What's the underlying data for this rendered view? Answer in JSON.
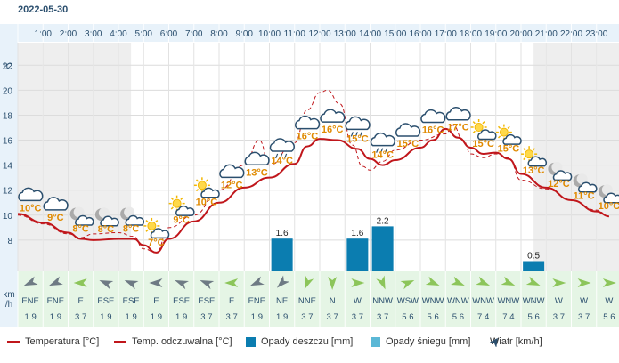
{
  "date": "2022-05-30",
  "chart_data": {
    "type": "line",
    "hours": [
      "1:00",
      "2:00",
      "3:00",
      "4:00",
      "5:00",
      "6:00",
      "7:00",
      "8:00",
      "9:00",
      "10:00",
      "11:00",
      "12:00",
      "13:00",
      "14:00",
      "15:00",
      "16:00",
      "17:00",
      "18:00",
      "19:00",
      "20:00",
      "21:00",
      "22:00",
      "23:00"
    ],
    "temp_unit_label": "°C",
    "y_ticks": [
      8,
      10,
      12,
      14,
      16,
      18,
      20,
      22
    ],
    "ylim": [
      5.5,
      23.8
    ],
    "temperature_curve": [
      [
        0.0,
        10.1
      ],
      [
        1.0,
        9.4
      ],
      [
        2.0,
        8.6
      ],
      [
        2.5,
        8.1
      ],
      [
        3.0,
        8.0
      ],
      [
        4.0,
        8.1
      ],
      [
        4.6,
        8.1
      ],
      [
        5.0,
        7.6
      ],
      [
        5.5,
        7.0
      ],
      [
        6.0,
        8.1
      ],
      [
        7.0,
        9.5
      ],
      [
        8.0,
        11.0
      ],
      [
        9.0,
        12.2
      ],
      [
        10.0,
        13.0
      ],
      [
        11.0,
        14.1
      ],
      [
        11.5,
        15.5
      ],
      [
        12.0,
        16.1
      ],
      [
        12.7,
        16.0
      ],
      [
        13.5,
        15.3
      ],
      [
        14.0,
        14.5
      ],
      [
        14.5,
        14.0
      ],
      [
        15.0,
        14.4
      ],
      [
        16.0,
        15.4
      ],
      [
        16.5,
        16.0
      ],
      [
        17.0,
        16.9
      ],
      [
        17.5,
        16.2
      ],
      [
        18.0,
        15.4
      ],
      [
        18.5,
        14.9
      ],
      [
        19.0,
        15.0
      ],
      [
        19.5,
        14.5
      ],
      [
        20.0,
        13.3
      ],
      [
        21.0,
        12.2
      ],
      [
        22.0,
        11.2
      ],
      [
        23.0,
        10.3
      ],
      [
        23.5,
        9.9
      ]
    ],
    "feels_like_curve": [
      [
        0.0,
        10.0
      ],
      [
        1.0,
        9.3
      ],
      [
        2.0,
        8.5
      ],
      [
        2.5,
        8.2
      ],
      [
        3.0,
        8.5
      ],
      [
        4.0,
        8.6
      ],
      [
        4.6,
        8.3
      ],
      [
        5.0,
        7.3
      ],
      [
        5.5,
        7.0
      ],
      [
        6.0,
        9.0
      ],
      [
        7.0,
        10.0
      ],
      [
        8.0,
        12.0
      ],
      [
        9.0,
        14.0
      ],
      [
        9.6,
        16.0
      ],
      [
        10.0,
        14.0
      ],
      [
        11.0,
        15.8
      ],
      [
        11.5,
        18.4
      ],
      [
        12.0,
        19.8
      ],
      [
        12.3,
        20.0
      ],
      [
        12.8,
        18.9
      ],
      [
        13.3,
        15.6
      ],
      [
        13.7,
        13.9
      ],
      [
        14.0,
        13.6
      ],
      [
        14.5,
        14.3
      ],
      [
        15.0,
        15.2
      ],
      [
        16.0,
        16.0
      ],
      [
        17.0,
        16.5
      ],
      [
        17.3,
        17.2
      ],
      [
        17.7,
        16.0
      ],
      [
        18.0,
        14.9
      ],
      [
        18.5,
        14.6
      ],
      [
        19.0,
        14.9
      ],
      [
        19.5,
        14.6
      ],
      [
        20.0,
        12.8
      ],
      [
        21.0,
        12.1
      ],
      [
        22.0,
        11.2
      ],
      [
        23.0,
        10.4
      ],
      [
        23.5,
        9.9
      ]
    ],
    "temp_labels": [
      {
        "x": 0.5,
        "text": "10°C"
      },
      {
        "x": 2.5,
        "text": "8°C"
      },
      {
        "x": 3.5,
        "text": "8°C"
      },
      {
        "x": 4.5,
        "text": "8°C"
      },
      {
        "x": 5.5,
        "text": "7°C"
      },
      {
        "x": 6.5,
        "text": "9°C"
      },
      {
        "x": 7.5,
        "text": "10°C"
      },
      {
        "x": 8.5,
        "text": "12°C"
      },
      {
        "x": 9.5,
        "text": "13°C"
      },
      {
        "x": 10.5,
        "text": "14°C"
      },
      {
        "x": 11.5,
        "text": "16°C"
      },
      {
        "x": 12.5,
        "text": "16°C"
      },
      {
        "x": 13.5,
        "text": "15°C"
      },
      {
        "x": 14.5,
        "text": "14°C"
      },
      {
        "x": 15.5,
        "text": "15°C"
      },
      {
        "x": 16.5,
        "text": "16°C"
      },
      {
        "x": 17.5,
        "text": "17°C"
      },
      {
        "x": 18.5,
        "text": "15°C"
      },
      {
        "x": 19.5,
        "text": "15°C"
      },
      {
        "x": 20.5,
        "text": "13°C"
      },
      {
        "x": 21.5,
        "text": "12°C"
      },
      {
        "x": 22.5,
        "text": "11°C"
      },
      {
        "x": 23.5,
        "text": "10°C"
      }
    ],
    "temp_label_extra": [
      {
        "x": 1.5,
        "text": "9°C"
      }
    ],
    "weather_icons": [
      {
        "x": 0.5,
        "icon": "cloud-icon"
      },
      {
        "x": 1.5,
        "icon": "cloud-icon"
      },
      {
        "x": 2.5,
        "icon": "moon-cloud-icon"
      },
      {
        "x": 3.5,
        "icon": "moon-cloud-icon"
      },
      {
        "x": 4.5,
        "icon": "moon-cloud-icon"
      },
      {
        "x": 5.5,
        "icon": "sun-cloud-icon"
      },
      {
        "x": 6.5,
        "icon": "sun-cloud-icon"
      },
      {
        "x": 7.5,
        "icon": "sun-cloud-icon"
      },
      {
        "x": 8.5,
        "icon": "cloud-icon"
      },
      {
        "x": 9.5,
        "icon": "cloud-icon"
      },
      {
        "x": 10.5,
        "icon": "rain-cloud-icon"
      },
      {
        "x": 11.5,
        "icon": "cloud-icon"
      },
      {
        "x": 12.5,
        "icon": "cloud-icon"
      },
      {
        "x": 13.5,
        "icon": "rain-cloud-icon"
      },
      {
        "x": 14.5,
        "icon": "rain-cloud-icon"
      },
      {
        "x": 15.5,
        "icon": "cloud-icon"
      },
      {
        "x": 16.5,
        "icon": "cloud-icon"
      },
      {
        "x": 17.5,
        "icon": "cloud-icon"
      },
      {
        "x": 18.5,
        "icon": "sun-cloud-icon"
      },
      {
        "x": 19.5,
        "icon": "sun-cloud-icon"
      },
      {
        "x": 20.5,
        "icon": "sun-cloud-icon"
      },
      {
        "x": 21.5,
        "icon": "moon-cloud-icon"
      },
      {
        "x": 22.5,
        "icon": "moon-cloud-icon"
      },
      {
        "x": 23.5,
        "icon": "moon-cloud-icon"
      }
    ],
    "precipitation": [
      {
        "x": 10.5,
        "value": 1.6,
        "label": "1.6"
      },
      {
        "x": 13.5,
        "value": 1.6,
        "label": "1.6"
      },
      {
        "x": 14.5,
        "value": 2.2,
        "label": "2.2"
      },
      {
        "x": 20.5,
        "value": 0.5,
        "label": "0.5"
      }
    ],
    "wind_unit_label": [
      "km",
      "/h"
    ],
    "wind": [
      {
        "dir": "ENE",
        "speed": "1.9",
        "angle": 247
      },
      {
        "dir": "ENE",
        "speed": "1.9",
        "angle": 247
      },
      {
        "dir": "E",
        "speed": "3.7",
        "angle": 270
      },
      {
        "dir": "ESE",
        "speed": "1.9",
        "angle": 292
      },
      {
        "dir": "ESE",
        "speed": "1.9",
        "angle": 292
      },
      {
        "dir": "E",
        "speed": "1.9",
        "angle": 270
      },
      {
        "dir": "ESE",
        "speed": "1.9",
        "angle": 292
      },
      {
        "dir": "ESE",
        "speed": "3.7",
        "angle": 292
      },
      {
        "dir": "E",
        "speed": "3.7",
        "angle": 270
      },
      {
        "dir": "ENE",
        "speed": "1.9",
        "angle": 247
      },
      {
        "dir": "NE",
        "speed": "1.9",
        "angle": 225
      },
      {
        "dir": "NNE",
        "speed": "3.7",
        "angle": 202
      },
      {
        "dir": "N",
        "speed": "3.7",
        "angle": 180
      },
      {
        "dir": "W",
        "speed": "3.7",
        "angle": 90
      },
      {
        "dir": "NNW",
        "speed": "3.7",
        "angle": 158
      },
      {
        "dir": "WSW",
        "speed": "5.6",
        "angle": 68
      },
      {
        "dir": "WNW",
        "speed": "5.6",
        "angle": 112
      },
      {
        "dir": "WNW",
        "speed": "5.6",
        "angle": 112
      },
      {
        "dir": "WNW",
        "speed": "7.4",
        "angle": 112
      },
      {
        "dir": "WNW",
        "speed": "7.4",
        "angle": 112
      },
      {
        "dir": "WNW",
        "speed": "5.6",
        "angle": 112
      },
      {
        "dir": "W",
        "speed": "3.7",
        "angle": 90
      },
      {
        "dir": "W",
        "speed": "3.7",
        "angle": 90
      },
      {
        "dir": "W",
        "speed": "5.6",
        "angle": 90
      }
    ],
    "legend": [
      {
        "label": "Temperatura [°C]",
        "kind": "line",
        "color": "#c0161b"
      },
      {
        "label": "Temp. odczuwalna [°C]",
        "kind": "line",
        "color": "#c0161b"
      },
      {
        "label": "Opady deszczu [mm]",
        "kind": "box",
        "color": "#0b7db0"
      },
      {
        "label": "Opady śniegu [mm]",
        "kind": "box",
        "color": "#5bb8d6"
      },
      {
        "label": "Wiatr [km/h]",
        "kind": "arrow",
        "color": "#2b4f6e"
      }
    ],
    "colors": {
      "temperature": "#c0161b",
      "precip": "#0b7db0",
      "snow": "#5bb8d6",
      "label": "#e08a00",
      "axis_text": "#2b4f6e",
      "night_bg": "#eeeeee",
      "wind_bg": "#e5f5e5",
      "header_bg": "#e8f2fa",
      "arrow_gray": "#6e7a84",
      "arrow_green": "#8cc55a"
    }
  }
}
